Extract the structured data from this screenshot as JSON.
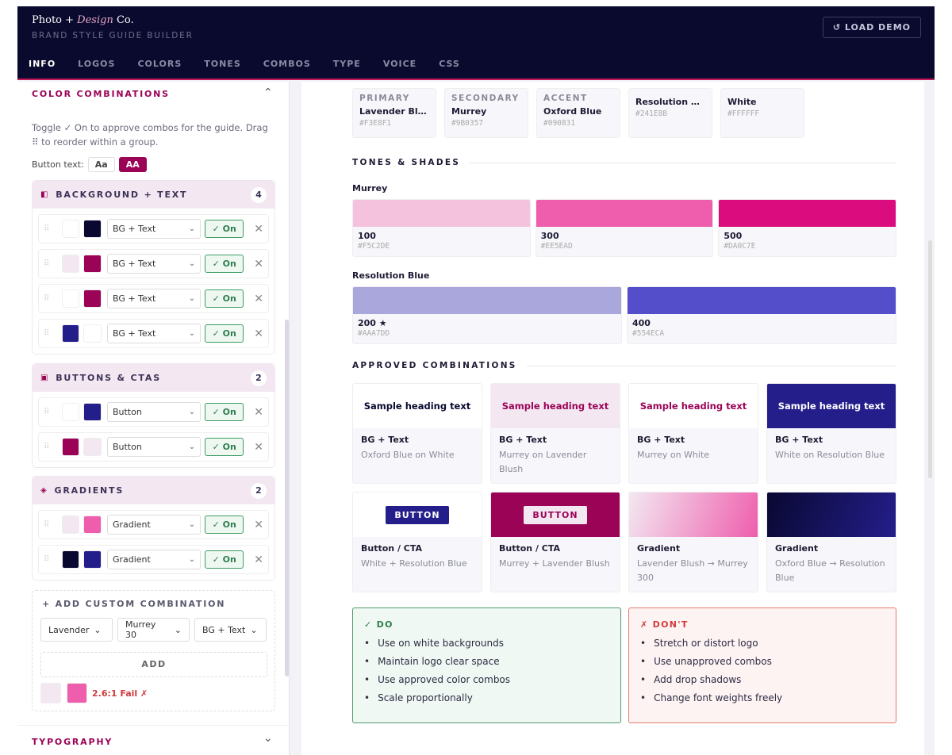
{
  "header": {
    "logo": {
      "part1": "Photo",
      "plus": " + ",
      "italic": "Design",
      "part2": " Co."
    },
    "subtitle": "BRAND STYLE GUIDE BUILDER",
    "load_demo": "↺ LOAD DEMO",
    "tabs": [
      {
        "label": "INFO",
        "active": true
      },
      {
        "label": "LOGOS"
      },
      {
        "label": "COLORS"
      },
      {
        "label": "TONES"
      },
      {
        "label": "COMBOS"
      },
      {
        "label": "TYPE"
      },
      {
        "label": "VOICE"
      },
      {
        "label": "CSS"
      }
    ]
  },
  "sidebar": {
    "section_title": "COLOR COMBINATIONS",
    "section_chevron": "⌃",
    "description": "Toggle ✓ On to approve combos for the guide. Drag ⠿ to reorder within a group.",
    "button_text_label": "Button text:",
    "button_text_options": [
      "Aa",
      "AA"
    ],
    "groups": [
      {
        "icon": "◧",
        "icon_name": "half-square-icon",
        "title": "BACKGROUND + TEXT",
        "count": "4",
        "rows": [
          {
            "a": "#FFFFFF",
            "b": "#090831",
            "type": "BG + Text",
            "toggle": "✓ On"
          },
          {
            "a": "#F3E8F1",
            "b": "#9B0357",
            "type": "BG + Text",
            "toggle": "✓ On"
          },
          {
            "a": "#FFFFFF",
            "b": "#9B0357",
            "type": "BG + Text",
            "toggle": "✓ On"
          },
          {
            "a": "#241E8B",
            "b": "#FFFFFF",
            "type": "BG + Text",
            "toggle": "✓ On"
          }
        ]
      },
      {
        "icon": "▣",
        "icon_name": "button-square-icon",
        "title": "BUTTONS & CTAS",
        "count": "2",
        "rows": [
          {
            "a": "#FFFFFF",
            "b": "#241E8B",
            "type": "Button",
            "toggle": "✓ On"
          },
          {
            "a": "#9B0357",
            "b": "#F3E8F1",
            "type": "Button",
            "toggle": "✓ On"
          }
        ]
      },
      {
        "icon": "◈",
        "icon_name": "diamond-icon",
        "title": "GRADIENTS",
        "count": "2",
        "rows": [
          {
            "a": "#F3E8F1",
            "b": "#EE5EAD",
            "type": "Gradient",
            "toggle": "✓ On"
          },
          {
            "a": "#090831",
            "b": "#241E8B",
            "type": "Gradient",
            "toggle": "✓ On"
          }
        ]
      }
    ],
    "custom": {
      "title": "+ ADD CUSTOM COMBINATION",
      "selects": [
        "Lavender",
        "Murrey 30",
        "BG + Text"
      ],
      "add": "ADD",
      "preview_a": "#F3E8F1",
      "preview_b": "#EE5EAD",
      "result": "2.6:1 Fail ✗"
    },
    "typography_title": "TYPOGRAPHY",
    "typography_chevron": "⌄"
  },
  "main": {
    "palette": [
      {
        "role": "PRIMARY",
        "name": "Lavender Blush",
        "hex": "#F3E8F1"
      },
      {
        "role": "SECONDARY",
        "name": "Murrey",
        "hex": "#9B0357"
      },
      {
        "role": "ACCENT",
        "name": "Oxford Blue",
        "hex": "#090831"
      },
      {
        "role": "",
        "name": "Resolution Bl...",
        "hex": "#241E8B"
      },
      {
        "role": "",
        "name": "White",
        "hex": "#FFFFFF"
      }
    ],
    "tones_title": "TONES & SHADES",
    "tone_groups": [
      {
        "name": "Murrey",
        "tones": [
          {
            "level": "100",
            "hex": "#F5C2DE"
          },
          {
            "level": "300",
            "hex": "#EE5EAD"
          },
          {
            "level": "500",
            "hex": "#DA0C7E"
          }
        ]
      },
      {
        "name": "Resolution Blue",
        "tones": [
          {
            "level": "200 ★",
            "hex": "#AAA7DD"
          },
          {
            "level": "400",
            "hex": "#554ECA"
          }
        ]
      }
    ],
    "approved_title": "APPROVED COMBINATIONS",
    "combos": [
      {
        "preview": "Sample heading text",
        "kind": "text",
        "bg": "#FFFFFF",
        "fg": "#090831",
        "type": "BG + Text",
        "desc": "Oxford Blue on White"
      },
      {
        "preview": "Sample heading text",
        "kind": "text",
        "bg": "#F3E8F1",
        "fg": "#9B0357",
        "type": "BG + Text",
        "desc": "Murrey on Lavender Blush"
      },
      {
        "preview": "Sample heading text",
        "kind": "text",
        "bg": "#FFFFFF",
        "fg": "#9B0357",
        "type": "BG + Text",
        "desc": "Murrey on White"
      },
      {
        "preview": "Sample heading text",
        "kind": "text",
        "bg": "#241E8B",
        "fg": "#FFFFFF",
        "type": "BG + Text",
        "desc": "White on Resolution Blue"
      },
      {
        "preview": "BUTTON",
        "kind": "button",
        "bg": "#FFFFFF",
        "fg": "#FFFFFF",
        "btn": "#241E8B",
        "type": "Button / CTA",
        "desc": "White + Resolution Blue"
      },
      {
        "preview": "BUTTON",
        "kind": "button",
        "bg": "#9B0357",
        "fg": "#9B0357",
        "btn": "#F3E8F1",
        "type": "Button / CTA",
        "desc": "Murrey + Lavender Blush"
      },
      {
        "preview": "",
        "kind": "gradient",
        "bg": "#F3E8F1",
        "fg": "#EE5EAD",
        "type": "Gradient",
        "desc": "Lavender Blush → Murrey 300"
      },
      {
        "preview": "",
        "kind": "gradient",
        "bg": "#090831",
        "fg": "#241E8B",
        "type": "Gradient",
        "desc": "Oxford Blue → Resolution Blue"
      }
    ],
    "do": {
      "title": "✓ DO",
      "items": [
        "Use on white backgrounds",
        "Maintain logo clear space",
        "Use approved color combos",
        "Scale proportionally"
      ]
    },
    "dont": {
      "title": "✗ DON'T",
      "items": [
        "Stretch or distort logo",
        "Use unapproved combos",
        "Add drop shadows",
        "Change font weights freely"
      ]
    }
  },
  "colors": {
    "accent": "#9B0357",
    "header_bg": "#0A0A2E",
    "success": "#2E7D4F",
    "danger": "#D03B3B"
  }
}
